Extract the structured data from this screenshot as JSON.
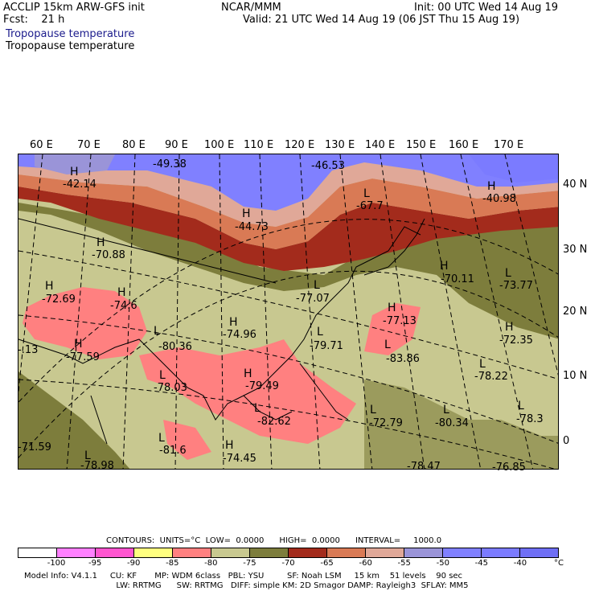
{
  "header": {
    "model_title": "ACCLIP 15km ARW-GFS init",
    "forecast": "Fcst:    21 h",
    "org": "NCAR/MMM",
    "init": "Init: 00 UTC Wed 14 Aug 19",
    "valid": "Valid: 21 UTC Wed 14 Aug 19 (06 JST Thu 15 Aug 19)",
    "field_1": "Tropopause temperature",
    "field_2": "Tropopause temperature"
  },
  "map": {
    "longitudes": [
      "60 E",
      "70 E",
      "80 E",
      "90 E",
      "100 E",
      "110 E",
      "120 E",
      "130 E",
      "140 E",
      "150 E",
      "160 E",
      "170 E"
    ],
    "latitudes": [
      "40 N",
      "30 N",
      "20 N",
      "10 N",
      "0"
    ],
    "markers": [
      {
        "type": "H",
        "value": "-42.14"
      },
      {
        "type": "",
        "value": "-49.38"
      },
      {
        "type": "",
        "value": "-46.53"
      },
      {
        "type": "H",
        "value": "-40.98"
      },
      {
        "type": "H",
        "value": "-44.73"
      },
      {
        "type": "L",
        "value": "-67.7"
      },
      {
        "type": "H",
        "value": "-70.88"
      },
      {
        "type": "H",
        "value": "-70.11"
      },
      {
        "type": "L",
        "value": "-73.77"
      },
      {
        "type": "H",
        "value": "-72.69"
      },
      {
        "type": "H",
        "value": "-74.6"
      },
      {
        "type": "L",
        "value": "-77.07"
      },
      {
        "type": "H",
        "value": "-77.13"
      },
      {
        "type": "",
        "value": "-.13"
      },
      {
        "type": "H",
        "value": "-77.59"
      },
      {
        "type": "L",
        "value": "-80.36"
      },
      {
        "type": "H",
        "value": "-74.96"
      },
      {
        "type": "L",
        "value": "-79.71"
      },
      {
        "type": "L",
        "value": "-83.86"
      },
      {
        "type": "H",
        "value": "-72.35"
      },
      {
        "type": "L",
        "value": "-78.03"
      },
      {
        "type": "H",
        "value": "-79.49"
      },
      {
        "type": "L",
        "value": "-78.22"
      },
      {
        "type": "L",
        "value": "-82.62"
      },
      {
        "type": "L",
        "value": "-72.79"
      },
      {
        "type": "L",
        "value": "-80.34"
      },
      {
        "type": "L",
        "value": "-78.3"
      },
      {
        "type": "",
        "value": "-71.59"
      },
      {
        "type": "L",
        "value": "-78.98"
      },
      {
        "type": "L",
        "value": "-81.6"
      },
      {
        "type": "H",
        "value": "-74.45"
      },
      {
        "type": "",
        "value": "-78.47"
      },
      {
        "type": "",
        "value": "-76.85"
      }
    ]
  },
  "contours": {
    "label": "CONTOURS:",
    "units": "UNITS=°C",
    "low": "LOW=  0.0000",
    "high": "HIGH=  0.0000",
    "interval": "INTERVAL=     1000.0"
  },
  "colorbar": {
    "colors": [
      "#ffffff",
      "#ff80ff",
      "#ff55d0",
      "#ffff80",
      "#ff8080",
      "#c8c890",
      "#7d7d3c",
      "#a32b1c",
      "#d97a55",
      "#e0a898",
      "#9a94d8",
      "#8080ff",
      "#7b7bff",
      "#6f6ff5"
    ],
    "ticks": [
      "-100",
      "-95",
      "-90",
      "-85",
      "-80",
      "-75",
      "-70",
      "-65",
      "-60",
      "-55",
      "-50",
      "-45",
      "-40",
      "°C"
    ]
  },
  "model_info": {
    "line1": "Model Info: V4.1.1     CU: KF       MP: WDM 6class   PBL: YSU         SF: Noah LSM     15 km    51 levels    90 sec",
    "line2": "                                    LW: RRTMG      SW: RRTMG   DIFF: simple KM: 2D Smagor DAMP: Rayleigh3  SFLAY: MM5"
  }
}
